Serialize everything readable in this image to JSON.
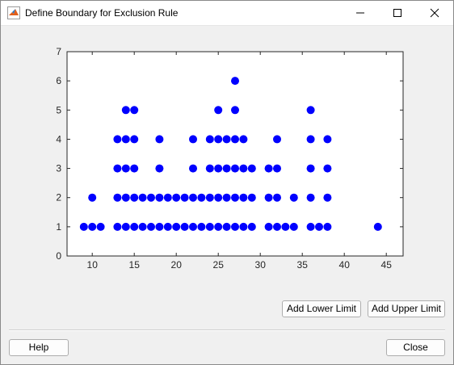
{
  "window": {
    "title": "Define Boundary for Exclusion Rule",
    "icon": "matlab-icon"
  },
  "buttons": {
    "add_lower": "Add Lower Limit",
    "add_upper": "Add Upper Limit",
    "help": "Help",
    "close": "Close"
  },
  "colors": {
    "marker": "#0000ff",
    "axes_bg": "#ffffff",
    "panel_bg": "#f0f0f0"
  },
  "chart_data": {
    "type": "scatter",
    "xlim": [
      7,
      47
    ],
    "ylim": [
      0,
      7
    ],
    "xticks": [
      10,
      15,
      20,
      25,
      30,
      35,
      40,
      45
    ],
    "yticks": [
      0,
      1,
      2,
      3,
      4,
      5,
      6,
      7
    ],
    "grid": false,
    "points": [
      [
        9,
        1
      ],
      [
        10,
        1
      ],
      [
        11,
        1
      ],
      [
        10,
        2
      ],
      [
        13,
        1
      ],
      [
        13,
        2
      ],
      [
        13,
        3
      ],
      [
        13,
        4
      ],
      [
        14,
        1
      ],
      [
        14,
        2
      ],
      [
        14,
        3
      ],
      [
        14,
        4
      ],
      [
        14,
        5
      ],
      [
        15,
        1
      ],
      [
        15,
        2
      ],
      [
        15,
        3
      ],
      [
        15,
        4
      ],
      [
        15,
        5
      ],
      [
        16,
        1
      ],
      [
        16,
        2
      ],
      [
        17,
        1
      ],
      [
        17,
        2
      ],
      [
        18,
        1
      ],
      [
        18,
        2
      ],
      [
        18,
        3
      ],
      [
        18,
        4
      ],
      [
        19,
        1
      ],
      [
        19,
        2
      ],
      [
        20,
        1
      ],
      [
        20,
        2
      ],
      [
        21,
        1
      ],
      [
        21,
        2
      ],
      [
        22,
        1
      ],
      [
        22,
        2
      ],
      [
        22,
        3
      ],
      [
        22,
        4
      ],
      [
        23,
        1
      ],
      [
        23,
        2
      ],
      [
        24,
        1
      ],
      [
        24,
        2
      ],
      [
        24,
        3
      ],
      [
        24,
        4
      ],
      [
        25,
        1
      ],
      [
        25,
        2
      ],
      [
        25,
        3
      ],
      [
        25,
        4
      ],
      [
        25,
        5
      ],
      [
        26,
        1
      ],
      [
        26,
        2
      ],
      [
        26,
        3
      ],
      [
        26,
        4
      ],
      [
        27,
        1
      ],
      [
        27,
        2
      ],
      [
        27,
        3
      ],
      [
        27,
        4
      ],
      [
        27,
        5
      ],
      [
        27,
        6
      ],
      [
        28,
        1
      ],
      [
        28,
        2
      ],
      [
        28,
        3
      ],
      [
        28,
        4
      ],
      [
        29,
        1
      ],
      [
        29,
        2
      ],
      [
        29,
        3
      ],
      [
        31,
        1
      ],
      [
        31,
        2
      ],
      [
        31,
        3
      ],
      [
        32,
        1
      ],
      [
        32,
        2
      ],
      [
        32,
        3
      ],
      [
        32,
        4
      ],
      [
        33,
        1
      ],
      [
        34,
        1
      ],
      [
        34,
        2
      ],
      [
        36,
        1
      ],
      [
        36,
        2
      ],
      [
        36,
        3
      ],
      [
        36,
        4
      ],
      [
        36,
        5
      ],
      [
        37,
        1
      ],
      [
        38,
        1
      ],
      [
        38,
        2
      ],
      [
        38,
        3
      ],
      [
        38,
        4
      ],
      [
        44,
        1
      ]
    ]
  }
}
